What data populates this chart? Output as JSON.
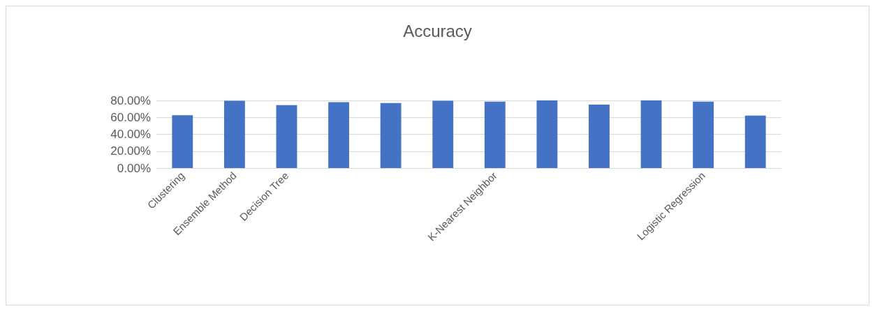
{
  "chart_data": {
    "type": "bar",
    "title": "Accuracy",
    "categories": [
      "Clustering",
      "Ensemble Method",
      "Decision Tree",
      null,
      null,
      null,
      "K-Nearest Neighbor",
      null,
      null,
      null,
      "Logistic Regression",
      null
    ],
    "values": [
      62.5,
      79.5,
      74.5,
      78,
      77,
      79.5,
      78.5,
      80,
      75,
      80,
      78.5,
      62
    ],
    "color": "#4472c4",
    "ylim": [
      0,
      80
    ],
    "yticks": [
      {
        "value": 0,
        "label": "0.00%"
      },
      {
        "value": 20,
        "label": "20.00%"
      },
      {
        "value": 40,
        "label": "40.00%"
      },
      {
        "value": 60,
        "label": "60.00%"
      },
      {
        "value": 80,
        "label": "80.00%"
      }
    ],
    "grid": true
  }
}
